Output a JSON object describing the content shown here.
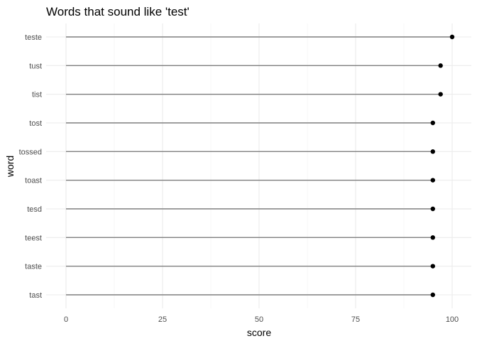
{
  "chart_data": {
    "type": "lollipop",
    "title": "Words that sound like 'test'",
    "xlabel": "score",
    "ylabel": "word",
    "xlim": [
      0,
      100
    ],
    "xticks": [
      0,
      25,
      50,
      75,
      100
    ],
    "xtick_labels": [
      "0",
      "25",
      "50",
      "75",
      "100"
    ],
    "categories": [
      "teste",
      "tust",
      "tist",
      "tost",
      "tossed",
      "toast",
      "tesd",
      "teest",
      "taste",
      "tast"
    ],
    "values": [
      100,
      97,
      97,
      95,
      95,
      95,
      95,
      95,
      95,
      95
    ],
    "grid": true,
    "legend": "none",
    "colors": {
      "point": "#000000",
      "stem": "#7f7f7f",
      "grid_major": "#ebebeb",
      "grid_minor": "#f2f2f2",
      "tick_text": "#4d4d4d",
      "text": "#000000"
    }
  }
}
